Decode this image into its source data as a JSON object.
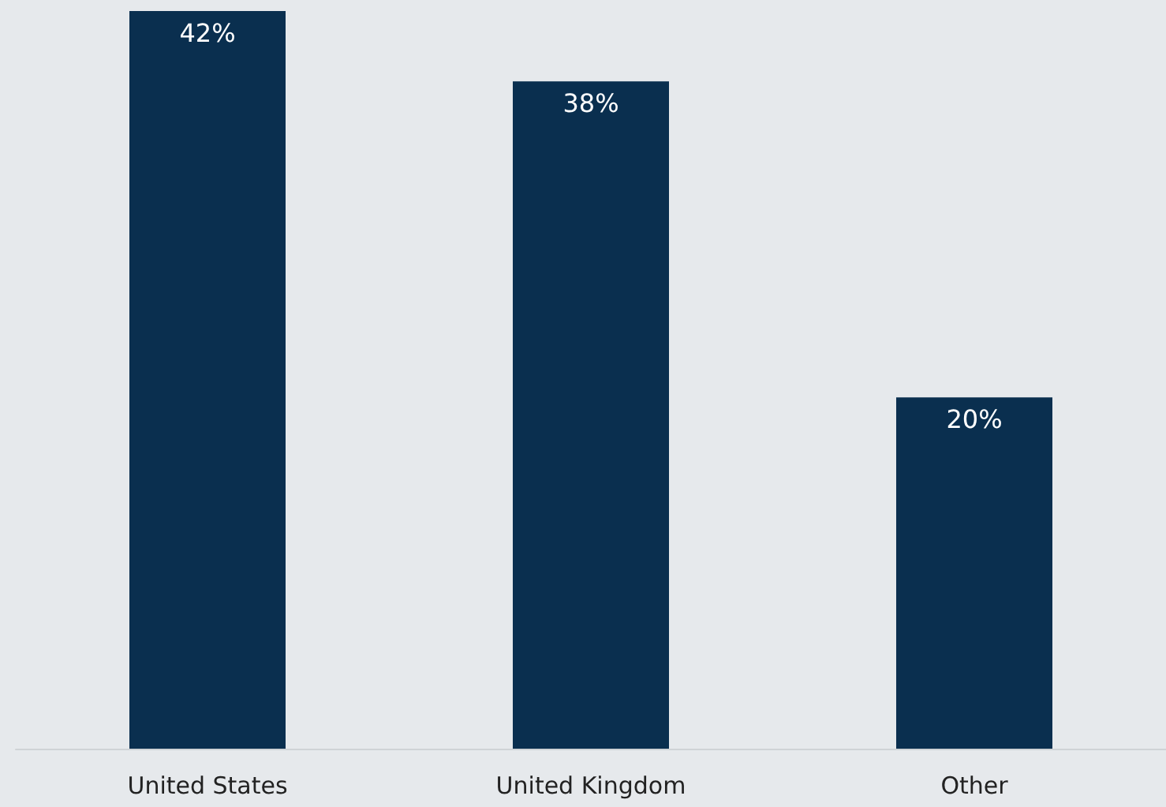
{
  "chart_data": {
    "type": "bar",
    "categories": [
      "United States",
      "United Kingdom",
      "Other"
    ],
    "values": [
      42,
      38,
      20
    ],
    "color": "#0a2f4f",
    "value_labels": [
      "42%",
      "38%",
      "20%"
    ],
    "tick_labels": "x"
  }
}
